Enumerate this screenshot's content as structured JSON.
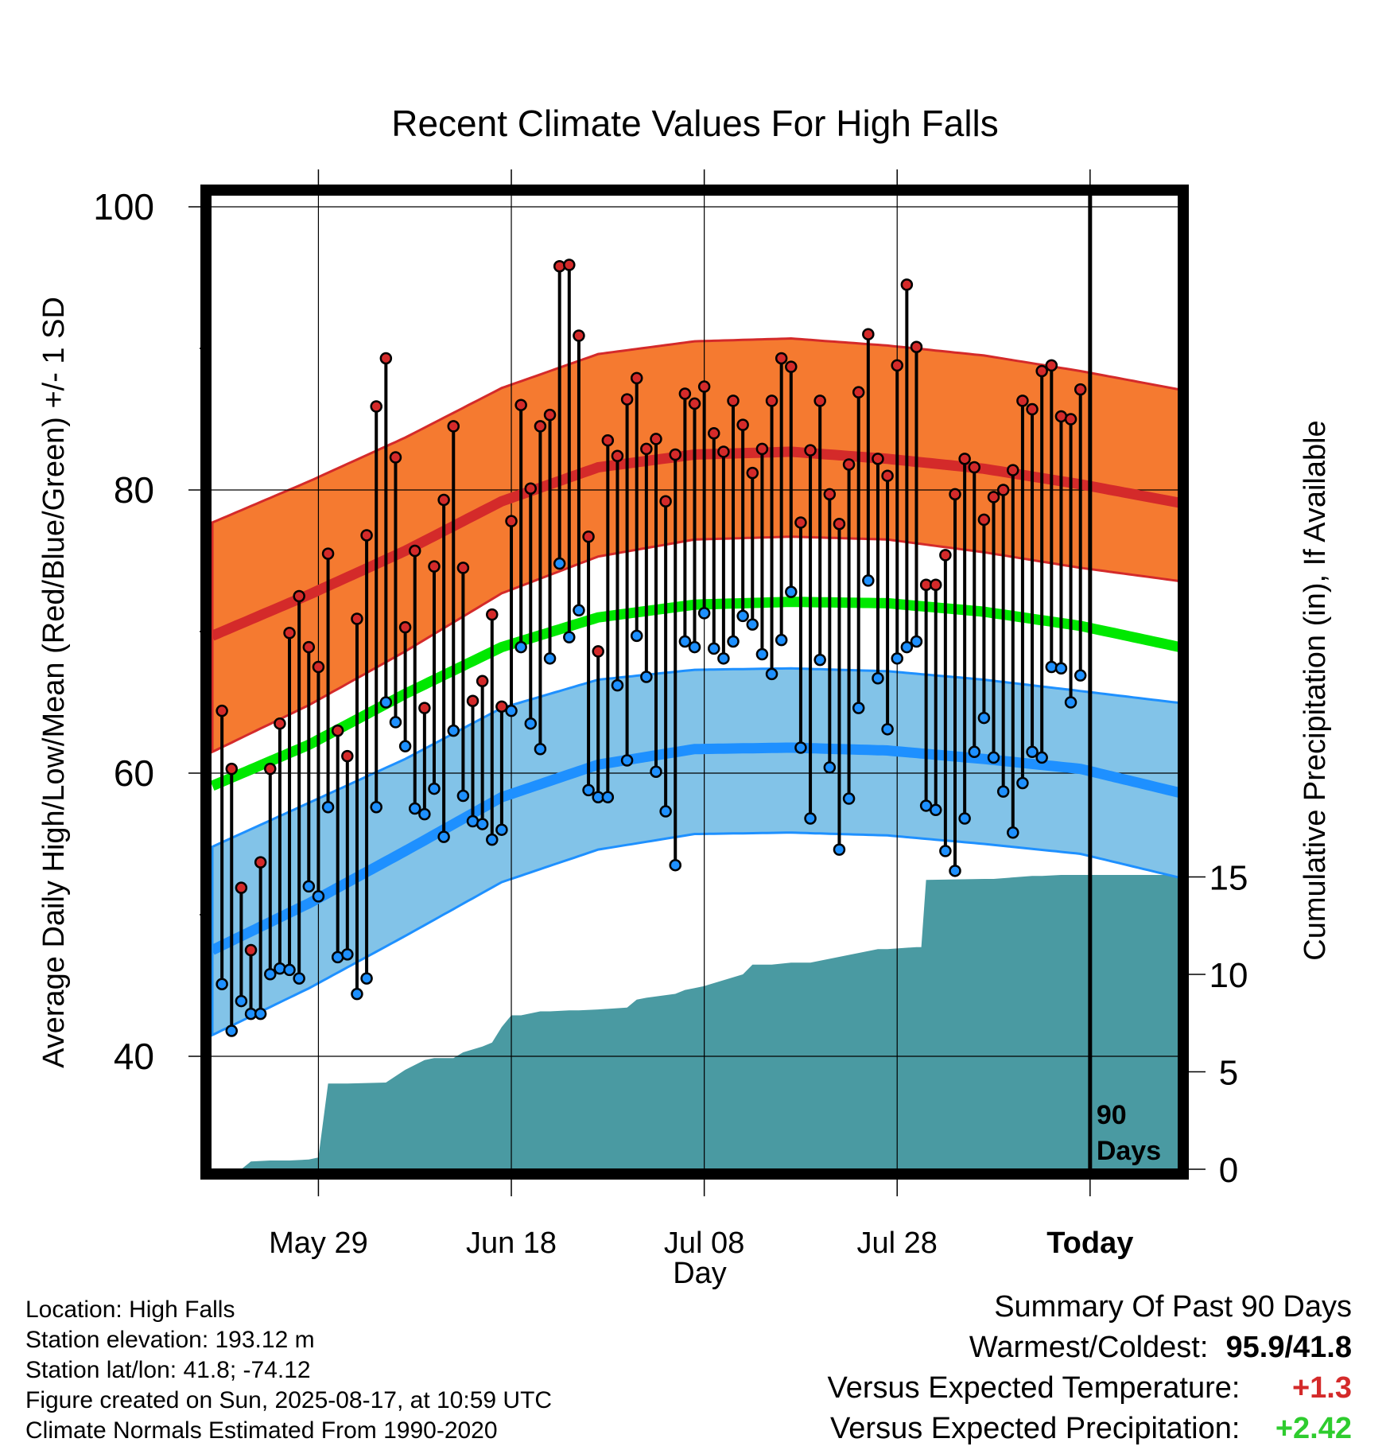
{
  "title": "Recent Climate Values For High Falls",
  "xlabel": "Day",
  "ylabel": "Average Daily High/Low/Mean (Red/Blue/Green) +/- 1 SD",
  "y2label": "Cumulative Precipitation (in), If Available",
  "info": [
    "Location: High Falls",
    "Station elevation: 193.12 m",
    "Station lat/lon: 41.8; -74.12",
    "Figure created on Sun, 2025-08-17, at 10:59 UTC",
    "Climate Normals Estimated From 1990-2020"
  ],
  "summary": {
    "heading": "Summary Of Past 90 Days",
    "warm_cold_label": "Warmest/Coldest:",
    "warm_cold_value": "95.9/41.8",
    "temp_label": "Versus Expected Temperature:",
    "temp_value": "+1.3",
    "precip_label": "Versus Expected Precipitation:",
    "precip_value": "+2.42"
  },
  "colors": {
    "high": "#d42a2a",
    "high_band": "#f57a30",
    "low": "#1e90ff",
    "low_band": "#82c3e8",
    "mean": "#00e800",
    "precip": "#4a9aa2",
    "temp_delta": "#d42a2a",
    "precip_delta": "#2ecc2e"
  },
  "chart_data": {
    "type": "line",
    "x_ticks": [
      "May 29",
      "Jun 18",
      "Jul 08",
      "Jul 28",
      "Today"
    ],
    "x_tick_days": [
      11,
      31,
      51,
      71,
      91
    ],
    "xlim": [
      0,
      101
    ],
    "ylim": [
      32,
      101
    ],
    "y_ticks": [
      40,
      60,
      80,
      100
    ],
    "y2lim": [
      0,
      15
    ],
    "y2_ticks": [
      0,
      5,
      10,
      15
    ],
    "today_day": 91,
    "today_label": "90\nDays",
    "grid": true,
    "normals": {
      "days": [
        0,
        10,
        20,
        30,
        40,
        50,
        60,
        70,
        80,
        90,
        101
      ],
      "high_mean": [
        69.7,
        72.6,
        75.7,
        79.2,
        81.6,
        82.5,
        82.7,
        82.2,
        81.5,
        80.4,
        79.0
      ],
      "high_sd": 8.0,
      "high_lower": [
        61.5,
        64.8,
        68.6,
        72.7,
        75.3,
        76.5,
        76.7,
        76.5,
        75.6,
        74.5,
        73.5
      ],
      "low_mean": [
        47.5,
        50.8,
        54.5,
        58.3,
        60.6,
        61.7,
        61.8,
        61.6,
        61.0,
        60.3,
        58.5
      ],
      "low_sd": 6.0,
      "low_upper": [
        54.8,
        57.9,
        61.0,
        64.6,
        66.6,
        67.3,
        67.4,
        67.2,
        66.6,
        65.8,
        64.9
      ],
      "mean": [
        59.1,
        62.0,
        65.6,
        68.9,
        71.0,
        71.9,
        72.1,
        72.0,
        71.4,
        70.4,
        68.8
      ]
    },
    "series": [
      {
        "name": "High",
        "values": [
          64.4,
          60.3,
          51.9,
          47.5,
          53.7,
          60.3,
          63.5,
          69.9,
          72.5,
          68.9,
          67.5,
          75.5,
          63.0,
          61.2,
          70.9,
          76.8,
          85.9,
          89.3,
          82.3,
          70.3,
          75.7,
          64.6,
          74.6,
          79.3,
          84.5,
          74.5,
          65.1,
          66.5,
          71.2,
          64.7,
          77.8,
          86.0,
          80.1,
          84.5,
          85.3,
          95.8,
          95.9,
          90.9,
          76.7,
          68.6,
          83.5,
          82.4,
          86.4,
          87.9,
          82.9,
          83.6,
          79.2,
          82.5,
          86.8,
          86.1,
          87.3,
          84.0,
          82.7,
          86.3,
          84.6,
          81.2,
          82.9,
          86.3,
          89.3,
          88.7,
          77.7,
          82.8,
          86.3,
          79.7,
          77.6,
          81.8,
          86.9,
          91.0,
          82.2,
          81.0,
          88.8,
          94.5,
          90.1,
          73.3,
          73.3,
          75.4,
          79.7,
          82.2,
          81.6,
          77.9,
          79.5,
          80.0,
          81.4,
          86.3,
          85.7,
          88.4,
          88.8,
          85.2,
          85.0,
          87.1
        ]
      },
      {
        "name": "Low",
        "values": [
          45.1,
          41.8,
          43.9,
          43.0,
          43.0,
          45.8,
          46.2,
          46.1,
          45.5,
          52.0,
          51.3,
          57.6,
          47.0,
          47.2,
          44.4,
          45.5,
          57.6,
          65.0,
          63.6,
          61.9,
          57.5,
          57.1,
          58.9,
          55.5,
          63.0,
          58.4,
          56.6,
          56.4,
          55.3,
          56.0,
          64.4,
          68.9,
          63.5,
          61.7,
          68.1,
          74.8,
          69.6,
          71.5,
          58.8,
          58.3,
          58.3,
          66.2,
          60.9,
          69.7,
          66.8,
          60.1,
          57.3,
          53.5,
          69.3,
          68.9,
          71.3,
          68.8,
          68.1,
          69.3,
          71.1,
          70.5,
          68.4,
          67.0,
          69.4,
          72.8,
          61.8,
          56.8,
          68.0,
          60.4,
          54.6,
          58.2,
          64.6,
          73.6,
          66.7,
          63.1,
          68.1,
          68.9,
          69.3,
          57.7,
          57.4,
          54.5,
          53.1,
          56.8,
          61.5,
          63.9,
          61.1,
          58.7,
          55.8,
          59.3,
          61.5,
          61.1,
          67.5,
          67.4,
          65.0,
          66.9
        ]
      },
      {
        "name": "Cumulative Precipitation",
        "days": [
          1,
          3,
          4,
          6,
          8,
          10,
          11,
          12,
          13,
          14,
          18,
          20,
          22,
          23,
          25,
          26,
          28,
          29,
          30,
          31,
          32,
          34,
          35,
          37,
          38,
          40,
          43,
          44,
          45,
          48,
          49,
          50,
          51,
          55,
          56,
          58,
          60,
          62,
          69,
          70,
          73,
          73.5,
          74,
          80,
          81,
          85,
          86,
          88,
          91,
          101
        ],
        "values": [
          0,
          0,
          0.4,
          0.45,
          0.45,
          0.5,
          0.6,
          4.4,
          4.4,
          4.4,
          4.45,
          5.1,
          5.6,
          5.7,
          5.7,
          6.0,
          6.3,
          6.5,
          7.3,
          7.9,
          7.9,
          8.1,
          8.1,
          8.15,
          8.15,
          8.2,
          8.3,
          8.7,
          8.8,
          9.0,
          9.2,
          9.3,
          9.4,
          10.0,
          10.5,
          10.5,
          10.6,
          10.6,
          11.3,
          11.3,
          11.4,
          11.4,
          14.85,
          14.9,
          14.9,
          15.05,
          15.05,
          15.1,
          15.1,
          15.1
        ]
      }
    ]
  }
}
